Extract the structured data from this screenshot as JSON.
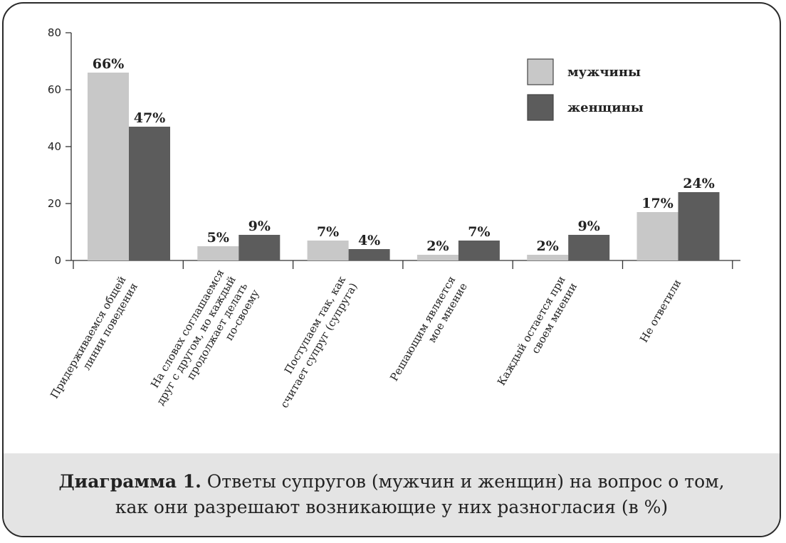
{
  "chart_data": {
    "type": "bar",
    "title": "",
    "xlabel": "",
    "ylabel": "",
    "ylim": [
      0,
      80
    ],
    "yticks": [
      0,
      20,
      40,
      60,
      80
    ],
    "categories": [
      [
        "Придерживаемся общей",
        "линии поведения"
      ],
      [
        "На словах соглашаемся",
        "друг с другом, но каждый",
        "продолжает делать",
        "по-своему"
      ],
      [
        "Поступаем так, как",
        "считает супруг (супруга)"
      ],
      [
        "Решающим является",
        "мое мнение"
      ],
      [
        "Каждый остается при",
        "своем мнении"
      ],
      [
        "Не ответили"
      ]
    ],
    "series": [
      {
        "name": "мужчины",
        "color": "#c8c8c8",
        "values": [
          66,
          5,
          7,
          2,
          2,
          17
        ],
        "labels": [
          "66%",
          "5%",
          "7%",
          "2%",
          "2%",
          "17%"
        ]
      },
      {
        "name": "женщины",
        "color": "#5c5c5c",
        "values": [
          47,
          9,
          4,
          7,
          9,
          24
        ],
        "labels": [
          "47%",
          "9%",
          "4%",
          "7%",
          "9%",
          "24%"
        ]
      }
    ],
    "legend_position": "top-right"
  },
  "caption": {
    "bold": "Диаграмма 1.",
    "line1": "Ответы супругов (мужчин и женщин) на вопрос о том,",
    "line2": "как они разрешают возникающие у них разногласия (в %)"
  }
}
